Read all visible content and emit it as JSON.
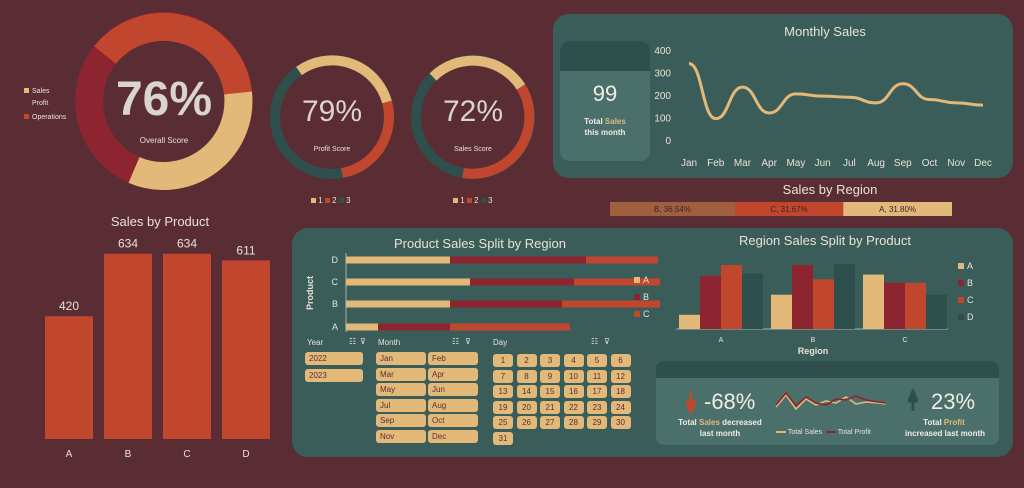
{
  "colors": {
    "bg": "#5a2d35",
    "panel": "#3b5d5a",
    "tan": "#e3b97a",
    "red": "#c0472e",
    "maroon": "#8c2530",
    "teal": "#2f4f4c"
  },
  "gauges": {
    "overall": {
      "value": "76%",
      "label": "Overall Score",
      "legend": [
        "Sales",
        "Profit",
        "Operations"
      ]
    },
    "profit": {
      "value": "79%",
      "label": "Profit Score",
      "legend": [
        "1",
        "2",
        "3"
      ]
    },
    "sales": {
      "value": "72%",
      "label": "Sales Score",
      "legend": [
        "1",
        "2",
        "3"
      ]
    }
  },
  "monthly": {
    "title": "Monthly Sales",
    "kpi_value": "99",
    "kpi_line1_pre": "Total ",
    "kpi_line1_hi": "Sales",
    "kpi_line2": "this month",
    "chart_data": {
      "type": "line",
      "categories": [
        "Jan",
        "Feb",
        "Mar",
        "Apr",
        "May",
        "Jun",
        "Jul",
        "Aug",
        "Sep",
        "Oct",
        "Nov",
        "Dec"
      ],
      "values": [
        340,
        95,
        235,
        120,
        205,
        195,
        190,
        165,
        250,
        180,
        165,
        155
      ],
      "ylim": [
        0,
        400
      ],
      "yticks": [
        "0",
        "100",
        "200",
        "300",
        "400"
      ]
    }
  },
  "region": {
    "title": "Sales by Region",
    "chart_data": {
      "type": "bar",
      "segments": [
        {
          "label": "B, 36.54%",
          "value": 36.54
        },
        {
          "label": "C, 31.67%",
          "value": 31.67
        },
        {
          "label": "A, 31.80%",
          "value": 31.8
        }
      ]
    }
  },
  "product": {
    "title": "Sales by Product",
    "chart_data": {
      "type": "bar",
      "categories": [
        "A",
        "B",
        "C",
        "D"
      ],
      "values": [
        420,
        634,
        634,
        611
      ],
      "labels": [
        "420",
        "634",
        "634",
        "611"
      ]
    }
  },
  "split_region": {
    "title": "Product Sales Split by Region",
    "ylabel": "Product",
    "chart_data": {
      "type": "bar",
      "categories": [
        "D",
        "C",
        "B",
        "A"
      ],
      "series": [
        {
          "name": "A",
          "values": [
            130,
            155,
            130,
            40
          ]
        },
        {
          "name": "B",
          "values": [
            170,
            130,
            140,
            90
          ]
        },
        {
          "name": "C",
          "values": [
            90,
            110,
            180,
            150
          ]
        }
      ]
    }
  },
  "split_product": {
    "title": "Region Sales Split by Product",
    "xlabel": "Region",
    "chart_data": {
      "type": "bar",
      "categories": [
        "A",
        "B",
        "C"
      ],
      "series": [
        {
          "name": "A",
          "values": [
            60,
            145,
            230
          ]
        },
        {
          "name": "B",
          "values": [
            225,
            270,
            195
          ]
        },
        {
          "name": "C",
          "values": [
            270,
            210,
            195
          ]
        },
        {
          "name": "D",
          "values": [
            235,
            275,
            145
          ]
        }
      ],
      "ylim": [
        0,
        300
      ]
    }
  },
  "slicers": {
    "year_label": "Year",
    "years": [
      "2022",
      "2023"
    ],
    "month_label": "Month",
    "months": [
      "Jan",
      "Feb",
      "Mar",
      "Apr",
      "May",
      "Jun",
      "Jul",
      "Aug",
      "Sep",
      "Oct",
      "Nov",
      "Dec"
    ],
    "day_label": "Day",
    "days": [
      "1",
      "2",
      "3",
      "4",
      "5",
      "6",
      "7",
      "8",
      "9",
      "10",
      "11",
      "12",
      "13",
      "14",
      "15",
      "16",
      "17",
      "18",
      "19",
      "20",
      "21",
      "22",
      "23",
      "24",
      "25",
      "26",
      "27",
      "28",
      "29",
      "30",
      "31"
    ]
  },
  "kpis": {
    "sales_change": "-68%",
    "sales_line1_pre": "Total ",
    "sales_line1_hi": "Sales",
    "sales_line1_post": " decreased",
    "sales_line2": "last month",
    "profit_change": "23%",
    "profit_line1_pre": "Total ",
    "profit_line1_hi": "Profit",
    "profit_line2": "increased last month",
    "legend_sales": "Total Sales",
    "legend_profit": "Total Profit"
  }
}
